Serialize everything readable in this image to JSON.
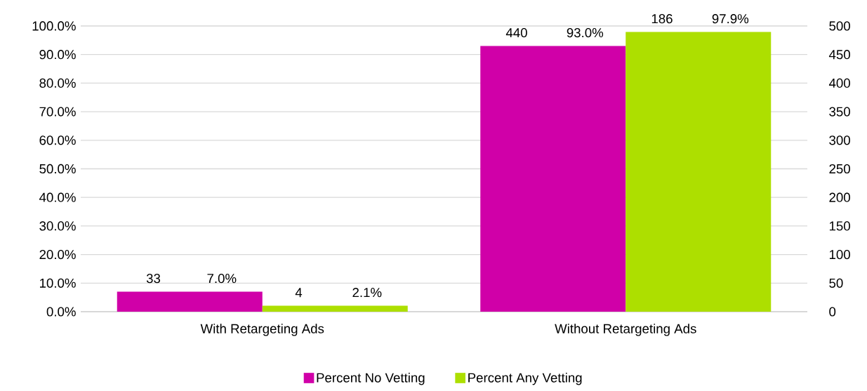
{
  "chart_data": {
    "type": "bar",
    "categories": [
      "With Retargeting Ads",
      "Without Retargeting Ads"
    ],
    "series": [
      {
        "name": "Percent No Vetting",
        "color": "#d000a8",
        "values": [
          7.0,
          93.0
        ],
        "value_labels": [
          "7.0%",
          "93.0%"
        ]
      },
      {
        "name": "Percent Any Vetting",
        "color": "#addf00",
        "values": [
          2.1,
          97.9
        ],
        "value_labels": [
          "2.1%",
          "97.9%"
        ]
      }
    ],
    "ylim": [
      0,
      100
    ],
    "yticks": [
      {
        "value": 0,
        "label": "0.0%"
      },
      {
        "value": 10,
        "label": "10.0%"
      },
      {
        "value": 20,
        "label": "20.0%"
      },
      {
        "value": 30,
        "label": "30.0%"
      },
      {
        "value": 40,
        "label": "40.0%"
      },
      {
        "value": 50,
        "label": "50.0%"
      },
      {
        "value": 60,
        "label": "60.0%"
      },
      {
        "value": 70,
        "label": "70.0%"
      },
      {
        "value": 80,
        "label": "80.0%"
      },
      {
        "value": 90,
        "label": "90.0%"
      },
      {
        "value": 100,
        "label": "100.0%"
      }
    ],
    "y2lim": [
      0,
      500
    ],
    "y2ticks": [
      0,
      50,
      100,
      150,
      200,
      250,
      300,
      350,
      400,
      450,
      500
    ],
    "annotations": [
      "33",
      "4",
      "440",
      "186"
    ],
    "grid": "y",
    "legend": "bottom"
  }
}
